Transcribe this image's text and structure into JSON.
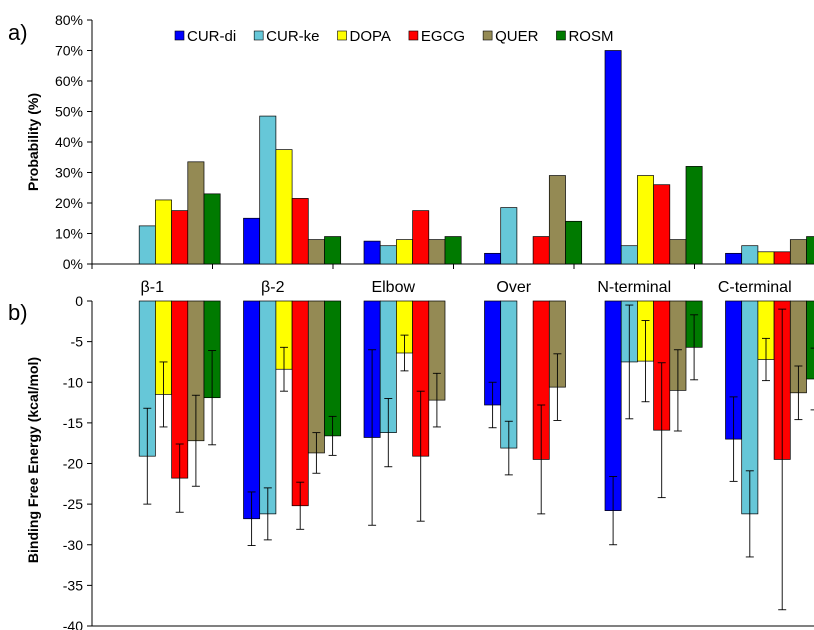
{
  "colors": {
    "CUR-di": "#0000ff",
    "CUR-ke": "#66c7d8",
    "DOPA": "#ffff00",
    "EGCG": "#ff0000",
    "QUER": "#948a54",
    "ROSM": "#007a00"
  },
  "chart_data": [
    {
      "panel_label": "a)",
      "type": "bar",
      "categories": [
        "β-1",
        "β-2",
        "Elbow",
        "Over",
        "N-terminal",
        "C-terminal"
      ],
      "ylabel": "Probability (%)",
      "ylim": [
        0,
        80
      ],
      "yticks": [
        "0%",
        "10%",
        "20%",
        "30%",
        "40%",
        "50%",
        "60%",
        "70%",
        "80%"
      ],
      "legend_position": "top",
      "grid": false,
      "series": [
        {
          "name": "CUR-di",
          "values": [
            0,
            15,
            7.5,
            3.5,
            70,
            3.5
          ]
        },
        {
          "name": "CUR-ke",
          "values": [
            12.5,
            48.5,
            6,
            18.5,
            6,
            6
          ]
        },
        {
          "name": "DOPA",
          "values": [
            21,
            37.5,
            8,
            0,
            29,
            4
          ]
        },
        {
          "name": "EGCG",
          "values": [
            17.5,
            21.5,
            17.5,
            9,
            26,
            4
          ]
        },
        {
          "name": "QUER",
          "values": [
            33.5,
            8,
            8,
            29,
            8,
            8
          ]
        },
        {
          "name": "ROSM",
          "values": [
            23,
            9,
            9,
            14,
            32,
            9
          ]
        }
      ]
    },
    {
      "panel_label": "b)",
      "type": "bar",
      "categories": [
        "β-1",
        "β-2",
        "Elbow",
        "Over",
        "N-terminal",
        "C-terminal"
      ],
      "ylabel": "Binding Free Energy (kcal/mol)",
      "ylim": [
        -40,
        0
      ],
      "yticks": [
        "0",
        "-5",
        "-10",
        "-15",
        "-20",
        "-25",
        "-30",
        "-35",
        "-40"
      ],
      "grid": false,
      "series": [
        {
          "name": "CUR-di",
          "values": [
            0,
            -26.8,
            -16.8,
            -12.8,
            -25.8,
            -17
          ],
          "errors": [
            0,
            3.3,
            10.8,
            2.8,
            4.2,
            5.2
          ]
        },
        {
          "name": "CUR-ke",
          "values": [
            -19.1,
            -26.2,
            -16.2,
            -18.1,
            -7.5,
            -26.2
          ],
          "errors": [
            5.9,
            3.2,
            4.2,
            3.3,
            7,
            5.3
          ]
        },
        {
          "name": "DOPA",
          "values": [
            -11.5,
            -8.4,
            -6.4,
            0,
            -7.4,
            -7.2
          ],
          "errors": [
            4,
            2.7,
            2.2,
            0,
            5,
            2.6
          ]
        },
        {
          "name": "EGCG",
          "values": [
            -21.8,
            -25.2,
            -19.1,
            -19.5,
            -15.9,
            -19.5
          ],
          "errors": [
            4.2,
            2.9,
            8,
            6.7,
            8.3,
            18.5
          ]
        },
        {
          "name": "QUER",
          "values": [
            -17.2,
            -18.7,
            -12.2,
            -10.6,
            -11,
            -11.3
          ],
          "errors": [
            5.6,
            2.5,
            3.3,
            4.1,
            5,
            3.3
          ]
        },
        {
          "name": "ROSM",
          "values": [
            -11.9,
            -16.6,
            0,
            0,
            -5.7,
            -9.6
          ],
          "errors": [
            5.8,
            2.4,
            0,
            0,
            4,
            3.8
          ]
        }
      ]
    }
  ]
}
